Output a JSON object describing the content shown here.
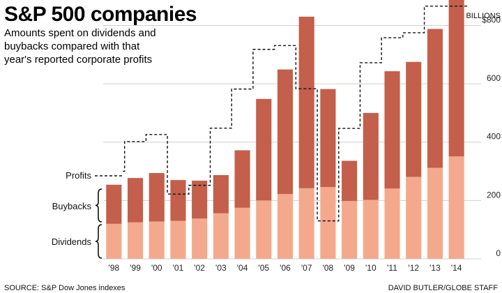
{
  "chart_data": {
    "type": "bar",
    "title": "S&P 500 companies",
    "subtitle": [
      "Amounts spent on dividends and",
      "buybacks compared with that",
      "year's reported corporate profits"
    ],
    "units_label": "BILLIONS",
    "categories": [
      "'98",
      "'99",
      "'00",
      "'01",
      "'02",
      "'03",
      "'04",
      "'05",
      "'06",
      "'07",
      "'08",
      "'09",
      "'10",
      "'11",
      "'12",
      "'13",
      "'14"
    ],
    "series": [
      {
        "name": "Dividends",
        "values": [
          120,
          125,
          128,
          130,
          138,
          156,
          175,
          200,
          222,
          242,
          246,
          198,
          202,
          241,
          281,
          312,
          351
        ]
      },
      {
        "name": "Buybacks",
        "values": [
          134,
          152,
          166,
          140,
          130,
          131,
          197,
          348,
          427,
          588,
          336,
          138,
          298,
          402,
          394,
          476,
          556
        ]
      }
    ],
    "profits": [
      300,
      402,
      426,
      222,
      252,
      448,
      582,
      718,
      731,
      583,
      130,
      447,
      672,
      758,
      775,
      866,
      866
    ],
    "series_colors": {
      "Dividends": "#f4a98c",
      "Buybacks": "#c35f4a",
      "Profits": "#000000"
    },
    "ylim": [
      0,
      880
    ],
    "yticks": [
      0,
      200,
      400,
      600,
      800
    ],
    "ytick_labels": [
      "0",
      "200",
      "400",
      "600",
      "$800"
    ],
    "grid": true,
    "legend_labels": {
      "profits": "Profits",
      "buybacks": "Buybacks",
      "dividends": "Dividends"
    },
    "source": "SOURCE: S&P Dow Jones indexes",
    "credit": "DAVID BUTLER/GLOBE STAFF"
  }
}
